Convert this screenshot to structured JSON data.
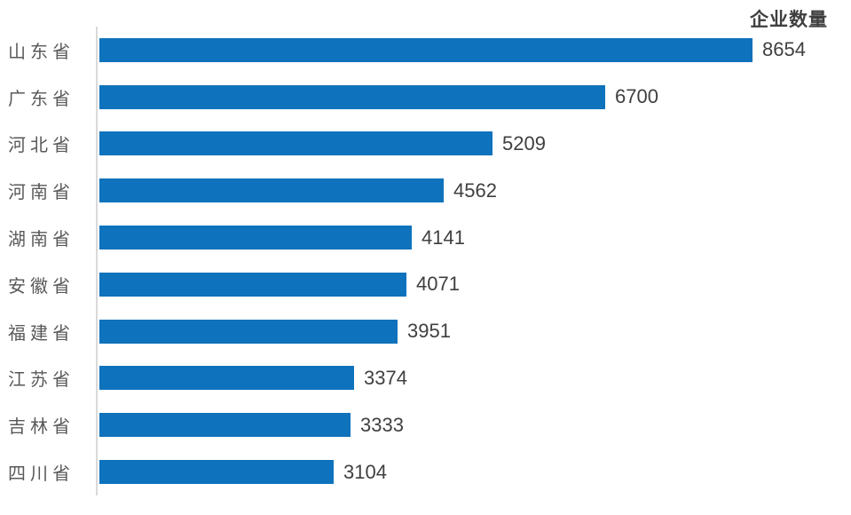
{
  "chart_data": {
    "type": "bar",
    "orientation": "horizontal",
    "title": "企业数量",
    "series_label": "企业数量",
    "categories": [
      "山东省",
      "广东省",
      "河北省",
      "河南省",
      "湖南省",
      "安徽省",
      "福建省",
      "江苏省",
      "吉林省",
      "四川省"
    ],
    "values": [
      8654,
      6700,
      5209,
      4562,
      4141,
      4071,
      3951,
      3374,
      3333,
      3104
    ],
    "xlim": [
      0,
      8654
    ],
    "grid": false,
    "legend_position": "top-right",
    "value_labels": "outside-end",
    "bar_color": "#0e72bc",
    "axis_line_color": "#d9d9d9",
    "category_label_color": "#595959",
    "value_label_color": "#404040",
    "title_color": "#3f3f3f",
    "background_color": "#ffffff"
  }
}
